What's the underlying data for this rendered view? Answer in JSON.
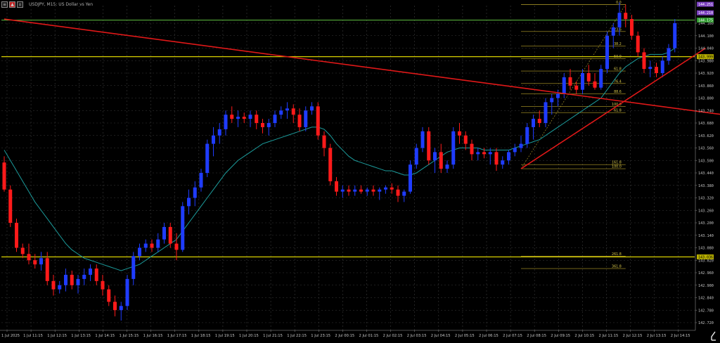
{
  "window": {
    "title": "USDJPY, M15: US Dollar vs Yen",
    "icon_names": [
      "chart-menu-icon",
      "flag-icon",
      "window-restore-icon"
    ]
  },
  "colors": {
    "background": "#000000",
    "grid": "#3a3a3a",
    "bull_candle": "#1f3cff",
    "bear_candle": "#ff1a1a",
    "moving_average": "#1c9c9c",
    "trendline": "#e01818",
    "level_line": "#d8d000",
    "top_line": "#60c040",
    "fib_line": "#b8a22a",
    "axis_text": "#c8c8c8",
    "purple_badge": "#7a3fbf",
    "green_badge": "#2f9a2f",
    "yellow_badge": "#b8b000"
  },
  "price_axis": {
    "ticks": [
      "144.160",
      "144.100",
      "144.040",
      "143.980",
      "143.920",
      "143.860",
      "143.800",
      "143.740",
      "143.680",
      "143.620",
      "143.560",
      "143.500",
      "143.440",
      "143.380",
      "143.320",
      "143.260",
      "143.200",
      "143.140",
      "143.080",
      "143.020",
      "142.960",
      "142.900",
      "142.840",
      "142.780",
      "142.720"
    ],
    "badges": [
      {
        "text": "144.251",
        "kind": "purple",
        "price": 144.251
      },
      {
        "text": "144.210",
        "kind": "purple",
        "price": 144.21
      },
      {
        "text": "144.175",
        "kind": "green",
        "price": 144.175
      },
      {
        "text": "143.999",
        "kind": "yellow",
        "price": 143.999
      },
      {
        "text": "143.036",
        "kind": "yellow",
        "price": 143.036
      }
    ]
  },
  "time_axis": {
    "labels": [
      "1 Jul 2025",
      "1 Jul 11:15",
      "1 Jul 12:15",
      "1 Jul 13:15",
      "1 Jul 14:15",
      "1 Jul 15:15",
      "1 Jul 16:15",
      "1 Jul 17:15",
      "1 Jul 18:15",
      "1 Jul 19:15",
      "1 Jul 20:15",
      "1 Jul 21:15",
      "1 Jul 22:15",
      "1 Jul 23:15",
      "2 Jul 00:15",
      "2 Jul 01:15",
      "2 Jul 02:15",
      "2 Jul 03:15",
      "2 Jul 04:15",
      "2 Jul 05:15",
      "2 Jul 06:15",
      "2 Jul 07:15",
      "2 Jul 08:15",
      "2 Jul 09:15",
      "2 Jul 10:15",
      "2 Jul 11:15",
      "2 Jul 12:15",
      "2 Jul 13:15",
      "2 Jul 14:15"
    ]
  },
  "chart_data": {
    "type": "candlestick",
    "symbol": "USDJPY",
    "timeframe": "M15",
    "ylim": [
      142.7,
      144.26
    ],
    "candles_ohlc": [
      [
        143.49,
        143.52,
        143.35,
        143.36
      ],
      [
        143.36,
        143.38,
        143.18,
        143.2
      ],
      [
        143.2,
        143.22,
        143.06,
        143.08
      ],
      [
        143.08,
        143.1,
        143.03,
        143.05
      ],
      [
        143.05,
        143.1,
        143.0,
        143.02
      ],
      [
        143.02,
        143.05,
        142.98,
        143.0
      ],
      [
        143.0,
        143.06,
        142.97,
        143.03
      ],
      [
        143.03,
        143.06,
        142.9,
        142.92
      ],
      [
        142.92,
        142.95,
        142.85,
        142.88
      ],
      [
        142.88,
        142.92,
        142.86,
        142.9
      ],
      [
        142.9,
        142.98,
        142.87,
        142.95
      ],
      [
        142.95,
        142.97,
        142.88,
        142.9
      ],
      [
        142.9,
        142.95,
        142.86,
        142.93
      ],
      [
        142.93,
        142.98,
        142.9,
        142.95
      ],
      [
        142.95,
        143.0,
        142.92,
        142.98
      ],
      [
        142.98,
        143.0,
        142.9,
        142.92
      ],
      [
        142.92,
        142.95,
        142.85,
        142.88
      ],
      [
        142.88,
        142.9,
        142.8,
        142.82
      ],
      [
        142.82,
        142.85,
        142.75,
        142.78
      ],
      [
        142.78,
        142.82,
        142.73,
        142.8
      ],
      [
        142.8,
        142.95,
        142.78,
        142.93
      ],
      [
        142.93,
        143.06,
        142.9,
        143.04
      ],
      [
        143.04,
        143.1,
        143.02,
        143.08
      ],
      [
        143.08,
        143.12,
        143.06,
        143.1
      ],
      [
        143.1,
        143.12,
        143.06,
        143.08
      ],
      [
        143.08,
        143.15,
        143.06,
        143.12
      ],
      [
        143.12,
        143.2,
        143.1,
        143.18
      ],
      [
        143.18,
        143.2,
        143.08,
        143.1
      ],
      [
        143.1,
        143.15,
        143.02,
        143.07
      ],
      [
        143.07,
        143.3,
        143.06,
        143.28
      ],
      [
        143.28,
        143.36,
        143.24,
        143.32
      ],
      [
        143.32,
        143.4,
        143.28,
        143.37
      ],
      [
        143.37,
        143.46,
        143.35,
        143.44
      ],
      [
        143.44,
        143.6,
        143.42,
        143.58
      ],
      [
        143.58,
        143.66,
        143.52,
        143.62
      ],
      [
        143.62,
        143.68,
        143.58,
        143.65
      ],
      [
        143.65,
        143.74,
        143.62,
        143.72
      ],
      [
        143.72,
        143.76,
        143.68,
        143.7
      ],
      [
        143.7,
        143.74,
        143.66,
        143.71
      ],
      [
        143.71,
        143.73,
        143.68,
        143.7
      ],
      [
        143.7,
        143.74,
        143.66,
        143.72
      ],
      [
        143.72,
        143.74,
        143.65,
        143.68
      ],
      [
        143.68,
        143.7,
        143.63,
        143.66
      ],
      [
        143.66,
        143.7,
        143.62,
        143.68
      ],
      [
        143.68,
        143.74,
        143.66,
        143.72
      ],
      [
        143.72,
        143.76,
        143.7,
        143.74
      ],
      [
        143.74,
        143.78,
        143.7,
        143.75
      ],
      [
        143.75,
        143.77,
        143.68,
        143.72
      ],
      [
        143.72,
        143.75,
        143.64,
        143.66
      ],
      [
        143.66,
        143.76,
        143.64,
        143.74
      ],
      [
        143.74,
        143.78,
        143.72,
        143.76
      ],
      [
        143.76,
        143.78,
        143.6,
        143.62
      ],
      [
        143.62,
        143.64,
        143.52,
        143.56
      ],
      [
        143.56,
        143.58,
        143.38,
        143.4
      ],
      [
        143.4,
        143.42,
        143.33,
        143.35
      ],
      [
        143.35,
        143.38,
        143.32,
        143.36
      ],
      [
        143.36,
        143.38,
        143.33,
        143.35
      ],
      [
        143.35,
        143.38,
        143.33,
        143.36
      ],
      [
        143.36,
        143.38,
        143.34,
        143.35
      ],
      [
        143.35,
        143.37,
        143.33,
        143.36
      ],
      [
        143.36,
        143.38,
        143.33,
        143.35
      ],
      [
        143.35,
        143.37,
        143.31,
        143.36
      ],
      [
        143.36,
        143.38,
        143.34,
        143.37
      ],
      [
        143.37,
        143.39,
        143.34,
        143.36
      ],
      [
        143.36,
        143.38,
        143.3,
        143.33
      ],
      [
        143.33,
        143.36,
        143.3,
        143.35
      ],
      [
        143.35,
        143.5,
        143.34,
        143.48
      ],
      [
        143.48,
        143.58,
        143.46,
        143.56
      ],
      [
        143.56,
        143.66,
        143.54,
        143.64
      ],
      [
        143.64,
        143.66,
        143.48,
        143.5
      ],
      [
        143.5,
        143.56,
        143.44,
        143.54
      ],
      [
        143.54,
        143.58,
        143.44,
        143.46
      ],
      [
        143.46,
        143.5,
        143.44,
        143.48
      ],
      [
        143.48,
        143.66,
        143.46,
        143.64
      ],
      [
        143.64,
        143.68,
        143.58,
        143.62
      ],
      [
        143.62,
        143.64,
        143.55,
        143.58
      ],
      [
        143.58,
        143.6,
        143.5,
        143.53
      ],
      [
        143.53,
        143.56,
        143.5,
        143.54
      ],
      [
        143.54,
        143.56,
        143.51,
        143.53
      ],
      [
        143.53,
        143.56,
        143.48,
        143.54
      ],
      [
        143.54,
        143.56,
        143.45,
        143.48
      ],
      [
        143.48,
        143.52,
        143.46,
        143.5
      ],
      [
        143.5,
        143.55,
        143.48,
        143.54
      ],
      [
        143.54,
        143.58,
        143.52,
        143.56
      ],
      [
        143.56,
        143.62,
        143.54,
        143.58
      ],
      [
        143.58,
        143.68,
        143.56,
        143.66
      ],
      [
        143.66,
        143.72,
        143.6,
        143.7
      ],
      [
        143.7,
        143.74,
        143.66,
        143.68
      ],
      [
        143.68,
        143.8,
        143.66,
        143.78
      ],
      [
        143.78,
        143.82,
        143.72,
        143.8
      ],
      [
        143.8,
        143.84,
        143.76,
        143.82
      ],
      [
        143.82,
        143.92,
        143.8,
        143.9
      ],
      [
        143.9,
        143.94,
        143.84,
        143.86
      ],
      [
        143.86,
        143.88,
        143.82,
        143.84
      ],
      [
        143.84,
        143.94,
        143.82,
        143.92
      ],
      [
        143.92,
        143.96,
        143.86,
        143.88
      ],
      [
        143.88,
        143.92,
        143.84,
        143.85
      ],
      [
        143.85,
        143.96,
        143.84,
        143.94
      ],
      [
        143.94,
        144.12,
        143.92,
        144.1
      ],
      [
        144.1,
        144.16,
        144.04,
        144.14
      ],
      [
        144.14,
        144.26,
        144.1,
        144.21
      ],
      [
        144.21,
        144.25,
        144.14,
        144.18
      ],
      [
        144.18,
        144.2,
        144.08,
        144.1
      ],
      [
        144.1,
        144.12,
        144.0,
        144.02
      ],
      [
        144.02,
        144.04,
        143.92,
        143.94
      ],
      [
        143.94,
        143.98,
        143.9,
        143.95
      ],
      [
        143.95,
        143.97,
        143.9,
        143.92
      ],
      [
        143.92,
        144.0,
        143.9,
        143.98
      ],
      [
        143.98,
        144.06,
        143.96,
        144.04
      ],
      [
        144.04,
        144.18,
        144.02,
        144.16
      ]
    ],
    "moving_average_values": [
      143.55,
      143.5,
      143.45,
      143.4,
      143.35,
      143.3,
      143.26,
      143.22,
      143.18,
      143.14,
      143.1,
      143.07,
      143.05,
      143.03,
      143.02,
      143.01,
      143.0,
      142.99,
      142.98,
      142.97,
      142.98,
      142.99,
      143.0,
      143.02,
      143.04,
      143.06,
      143.08,
      143.1,
      143.12,
      143.16,
      143.2,
      143.24,
      143.28,
      143.32,
      143.36,
      143.4,
      143.44,
      143.47,
      143.5,
      143.52,
      143.54,
      143.56,
      143.58,
      143.59,
      143.6,
      143.61,
      143.62,
      143.63,
      143.64,
      143.65,
      143.66,
      143.66,
      143.65,
      143.62,
      143.58,
      143.55,
      143.52,
      143.5,
      143.49,
      143.48,
      143.47,
      143.46,
      143.45,
      143.45,
      143.44,
      143.43,
      143.43,
      143.44,
      143.46,
      143.48,
      143.5,
      143.52,
      143.54,
      143.55,
      143.56,
      143.56,
      143.56,
      143.56,
      143.55,
      143.55,
      143.55,
      143.55,
      143.55,
      143.56,
      143.57,
      143.58,
      143.59,
      143.6,
      143.62,
      143.64,
      143.66,
      143.68,
      143.7,
      143.72,
      143.74,
      143.76,
      143.78,
      143.8,
      143.84,
      143.88,
      143.92,
      143.95,
      143.97,
      143.99,
      144.0,
      144.01,
      144.01,
      144.01,
      144.02,
      144.04
    ],
    "trendlines": [
      {
        "from": {
          "x": 0,
          "price": 144.18
        },
        "to": {
          "x": 127,
          "price": 143.68
        }
      },
      {
        "from": {
          "x": 84,
          "price": 143.46
        },
        "to": {
          "x": 114,
          "price": 144.04
        }
      }
    ],
    "horizontal_levels": [
      143.999,
      143.036
    ],
    "fibonacci_levels": [
      {
        "label": "0.0",
        "price": 144.25
      },
      {
        "label": "23.6",
        "price": 144.12
      },
      {
        "label": "38.2",
        "price": 144.05
      },
      {
        "label": "50.0",
        "price": 143.99
      },
      {
        "label": "61.8",
        "price": 143.93
      },
      {
        "label": "76.4",
        "price": 143.87
      },
      {
        "label": "88.6",
        "price": 143.82
      },
      {
        "label": "100.0",
        "price": 143.76
      },
      {
        "label": "61.8",
        "price": 143.73
      },
      {
        "label": "161.8",
        "price": 143.48
      },
      {
        "label": "100.0",
        "price": 143.46
      },
      {
        "label": "261.8",
        "price": 143.04
      },
      {
        "label": "361.8",
        "price": 142.98
      }
    ]
  }
}
